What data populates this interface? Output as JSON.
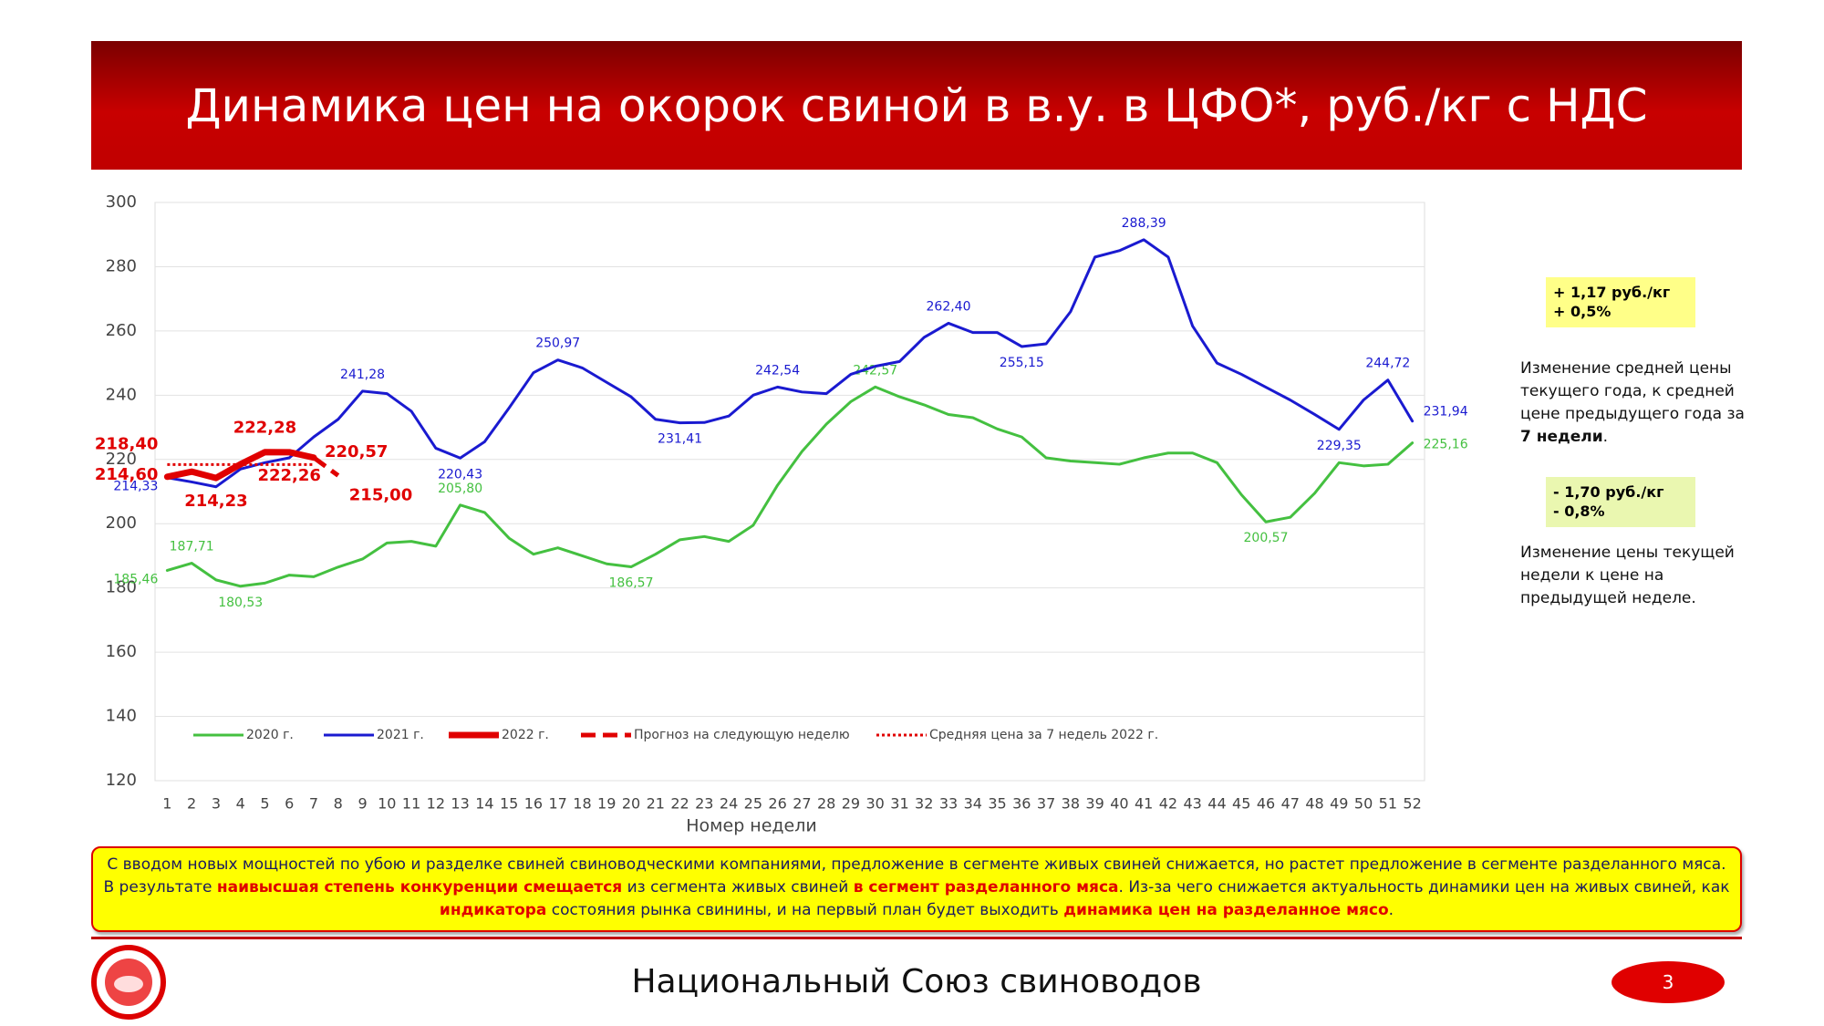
{
  "header": {
    "title": "Динамика цен на окорок свиной в в.у. в ЦФО*, руб./кг с НДС"
  },
  "chart_data": {
    "type": "line",
    "xlabel": "Номер недели",
    "categories": [
      "1",
      "2",
      "3",
      "4",
      "5",
      "6",
      "7",
      "8",
      "9",
      "10",
      "11",
      "12",
      "13",
      "14",
      "15",
      "16",
      "17",
      "18",
      "19",
      "20",
      "21",
      "22",
      "23",
      "24",
      "25",
      "26",
      "27",
      "28",
      "29",
      "30",
      "31",
      "32",
      "33",
      "34",
      "35",
      "36",
      "37",
      "38",
      "39",
      "40",
      "41",
      "42",
      "43",
      "44",
      "45",
      "46",
      "47",
      "48",
      "49",
      "50",
      "51",
      "52"
    ],
    "ylim": [
      120,
      300
    ],
    "yticks": [
      120,
      140,
      160,
      180,
      200,
      220,
      240,
      260,
      280,
      300
    ],
    "grid": true,
    "series": [
      {
        "name": "2020 г.",
        "color": "#44c040",
        "style": "solid",
        "values": [
          185.46,
          187.71,
          182.5,
          180.53,
          181.5,
          184,
          183.5,
          186.5,
          189,
          194,
          194.5,
          193,
          205.8,
          203.5,
          195.5,
          190.5,
          192.5,
          190,
          187.5,
          186.57,
          190.5,
          195,
          196,
          194.5,
          199.5,
          212,
          222.5,
          231,
          238,
          242.57,
          239.5,
          237,
          234,
          233,
          229.5,
          227,
          220.5,
          219.5,
          219,
          218.5,
          220.5,
          222,
          222,
          219,
          209,
          200.57,
          202,
          209.5,
          219,
          218,
          218.5,
          225.16
        ],
        "value_labels": [
          "185,46",
          "187,71",
          null,
          "180,53",
          null,
          null,
          null,
          null,
          null,
          null,
          null,
          null,
          "205,80",
          null,
          null,
          null,
          null,
          null,
          null,
          "186,57",
          null,
          null,
          null,
          null,
          null,
          null,
          null,
          null,
          null,
          "242,57",
          null,
          null,
          null,
          null,
          null,
          null,
          null,
          null,
          null,
          null,
          null,
          null,
          null,
          null,
          null,
          "200,57",
          null,
          null,
          null,
          null,
          null,
          "225,16"
        ]
      },
      {
        "name": "2021 г.",
        "color": "#1a1ad0",
        "style": "solid",
        "values": [
          214.33,
          213,
          211.5,
          217,
          219,
          220.5,
          227,
          232.5,
          241.28,
          240.5,
          235,
          223.5,
          220.43,
          225.5,
          236,
          247,
          250.97,
          248.5,
          244,
          239.5,
          232.5,
          231.41,
          231.5,
          233.5,
          240,
          242.54,
          241,
          240.5,
          246.5,
          249,
          250.5,
          258,
          262.4,
          259.5,
          259.5,
          255.15,
          256,
          266,
          283,
          285,
          288.39,
          283,
          261.5,
          250,
          246.5,
          242.5,
          238.5,
          234,
          229.35,
          238.5,
          244.72,
          231.94
        ],
        "value_labels": [
          "214,33",
          null,
          null,
          null,
          null,
          null,
          null,
          null,
          "241,28",
          null,
          null,
          null,
          "220,43",
          null,
          null,
          null,
          "250,97",
          null,
          null,
          null,
          null,
          "231,41",
          null,
          null,
          null,
          "242,54",
          null,
          null,
          null,
          null,
          null,
          null,
          "262,40",
          null,
          null,
          "255,15",
          null,
          null,
          null,
          null,
          "288,39",
          null,
          null,
          null,
          null,
          null,
          null,
          null,
          "229,35",
          null,
          "244,72",
          "231,94"
        ]
      },
      {
        "name": "2022 г.",
        "color": "#e00000",
        "style": "thick",
        "values": [
          214.6,
          216.2,
          214.23,
          218.5,
          222.28,
          222.26,
          220.57,
          null,
          null,
          null,
          null,
          null,
          null,
          null,
          null,
          null,
          null,
          null,
          null,
          null,
          null,
          null,
          null,
          null,
          null,
          null,
          null,
          null,
          null,
          null,
          null,
          null,
          null,
          null,
          null,
          null,
          null,
          null,
          null,
          null,
          null,
          null,
          null,
          null,
          null,
          null,
          null,
          null,
          null,
          null,
          null,
          null
        ],
        "value_labels": [
          "214,60",
          null,
          "214,23",
          null,
          "222,28",
          "222,26",
          "220,57",
          null,
          null,
          null,
          null,
          null,
          null,
          null,
          null,
          null,
          null,
          null,
          null,
          null,
          null,
          null,
          null,
          null,
          null,
          null,
          null,
          null,
          null,
          null,
          null,
          null,
          null,
          null,
          null,
          null,
          null,
          null,
          null,
          null,
          null,
          null,
          null,
          null,
          null,
          null,
          null,
          null,
          null,
          null,
          null,
          null
        ]
      },
      {
        "name": "Прогноз на следующую неделю",
        "color": "#e00000",
        "style": "dashed",
        "values": [
          null,
          null,
          null,
          null,
          null,
          null,
          220.57,
          215,
          null,
          null,
          null,
          null,
          null,
          null,
          null,
          null,
          null,
          null,
          null,
          null,
          null,
          null,
          null,
          null,
          null,
          null,
          null,
          null,
          null,
          null,
          null,
          null,
          null,
          null,
          null,
          null,
          null,
          null,
          null,
          null,
          null,
          null,
          null,
          null,
          null,
          null,
          null,
          null,
          null,
          null,
          null,
          null
        ],
        "value_labels": [
          null,
          null,
          null,
          null,
          null,
          null,
          null,
          "215,00",
          null,
          null,
          null,
          null,
          null,
          null,
          null,
          null,
          null,
          null,
          null,
          null,
          null,
          null,
          null,
          null,
          null,
          null,
          null,
          null,
          null,
          null,
          null,
          null,
          null,
          null,
          null,
          null,
          null,
          null,
          null,
          null,
          null,
          null,
          null,
          null,
          null,
          null,
          null,
          null,
          null,
          null,
          null,
          null
        ]
      },
      {
        "name": "Средняя цена за 7 недель 2022 г.",
        "color": "#e00000",
        "style": "dotted",
        "values": [
          218.4,
          218.4,
          218.4,
          218.4,
          218.4,
          218.4,
          218.4,
          null,
          null,
          null,
          null,
          null,
          null,
          null,
          null,
          null,
          null,
          null,
          null,
          null,
          null,
          null,
          null,
          null,
          null,
          null,
          null,
          null,
          null,
          null,
          null,
          null,
          null,
          null,
          null,
          null,
          null,
          null,
          null,
          null,
          null,
          null,
          null,
          null,
          null,
          null,
          null,
          null,
          null,
          null,
          null,
          null
        ],
        "value_labels": [
          "218,40",
          null,
          null,
          null,
          null,
          null,
          null,
          null,
          null,
          null,
          null,
          null,
          null,
          null,
          null,
          null,
          null,
          null,
          null,
          null,
          null,
          null,
          null,
          null,
          null,
          null,
          null,
          null,
          null,
          null,
          null,
          null,
          null,
          null,
          null,
          null,
          null,
          null,
          null,
          null,
          null,
          null,
          null,
          null,
          null,
          null,
          null,
          null,
          null,
          null,
          null,
          null
        ]
      }
    ]
  },
  "side_notes": [
    {
      "box": [
        "+ 1,17 руб./кг",
        "+ 0,5%"
      ],
      "box_color": "#ffff88",
      "text": [
        {
          "text": "Изменение средней цены текущего года, к средней цене предыдущего года за ",
          "bold": false
        },
        {
          "text": "7 недели",
          "bold": true
        },
        {
          "text": ".",
          "bold": false
        }
      ]
    },
    {
      "box": [
        "- 1,70 руб./кг",
        "- 0,8%"
      ],
      "box_color": "#eaf7b0",
      "text": [
        {
          "text": "Изменение цены текущей недели к цене на предыдущей неделе.",
          "bold": false
        }
      ]
    }
  ],
  "bottom_note": [
    {
      "text": "С вводом новых мощностей по убою и разделке свиней свиноводческими компаниями, предложение в сегменте живых свиней снижается, но растет предложение в сегменте разделанного мяса.  В результате ",
      "red": false
    },
    {
      "text": "наивысшая степень конкуренции смещается",
      "red": true
    },
    {
      "text": " из сегмента живых свиней ",
      "red": false
    },
    {
      "text": "в сегмент разделанного мяса",
      "red": true
    },
    {
      "text": ". Из-за чего снижается актуальность динамики цен на живых свиней, как ",
      "red": false
    },
    {
      "text": "индикатора",
      "red": true
    },
    {
      "text": " состояния рынка свинины, и на первый план будет выходить ",
      "red": false
    },
    {
      "text": "динамика цен на разделанное мясо",
      "red": true
    },
    {
      "text": ".",
      "red": false
    }
  ],
  "footer": {
    "organization": "Национальный Союз свиноводов",
    "page": "3"
  }
}
